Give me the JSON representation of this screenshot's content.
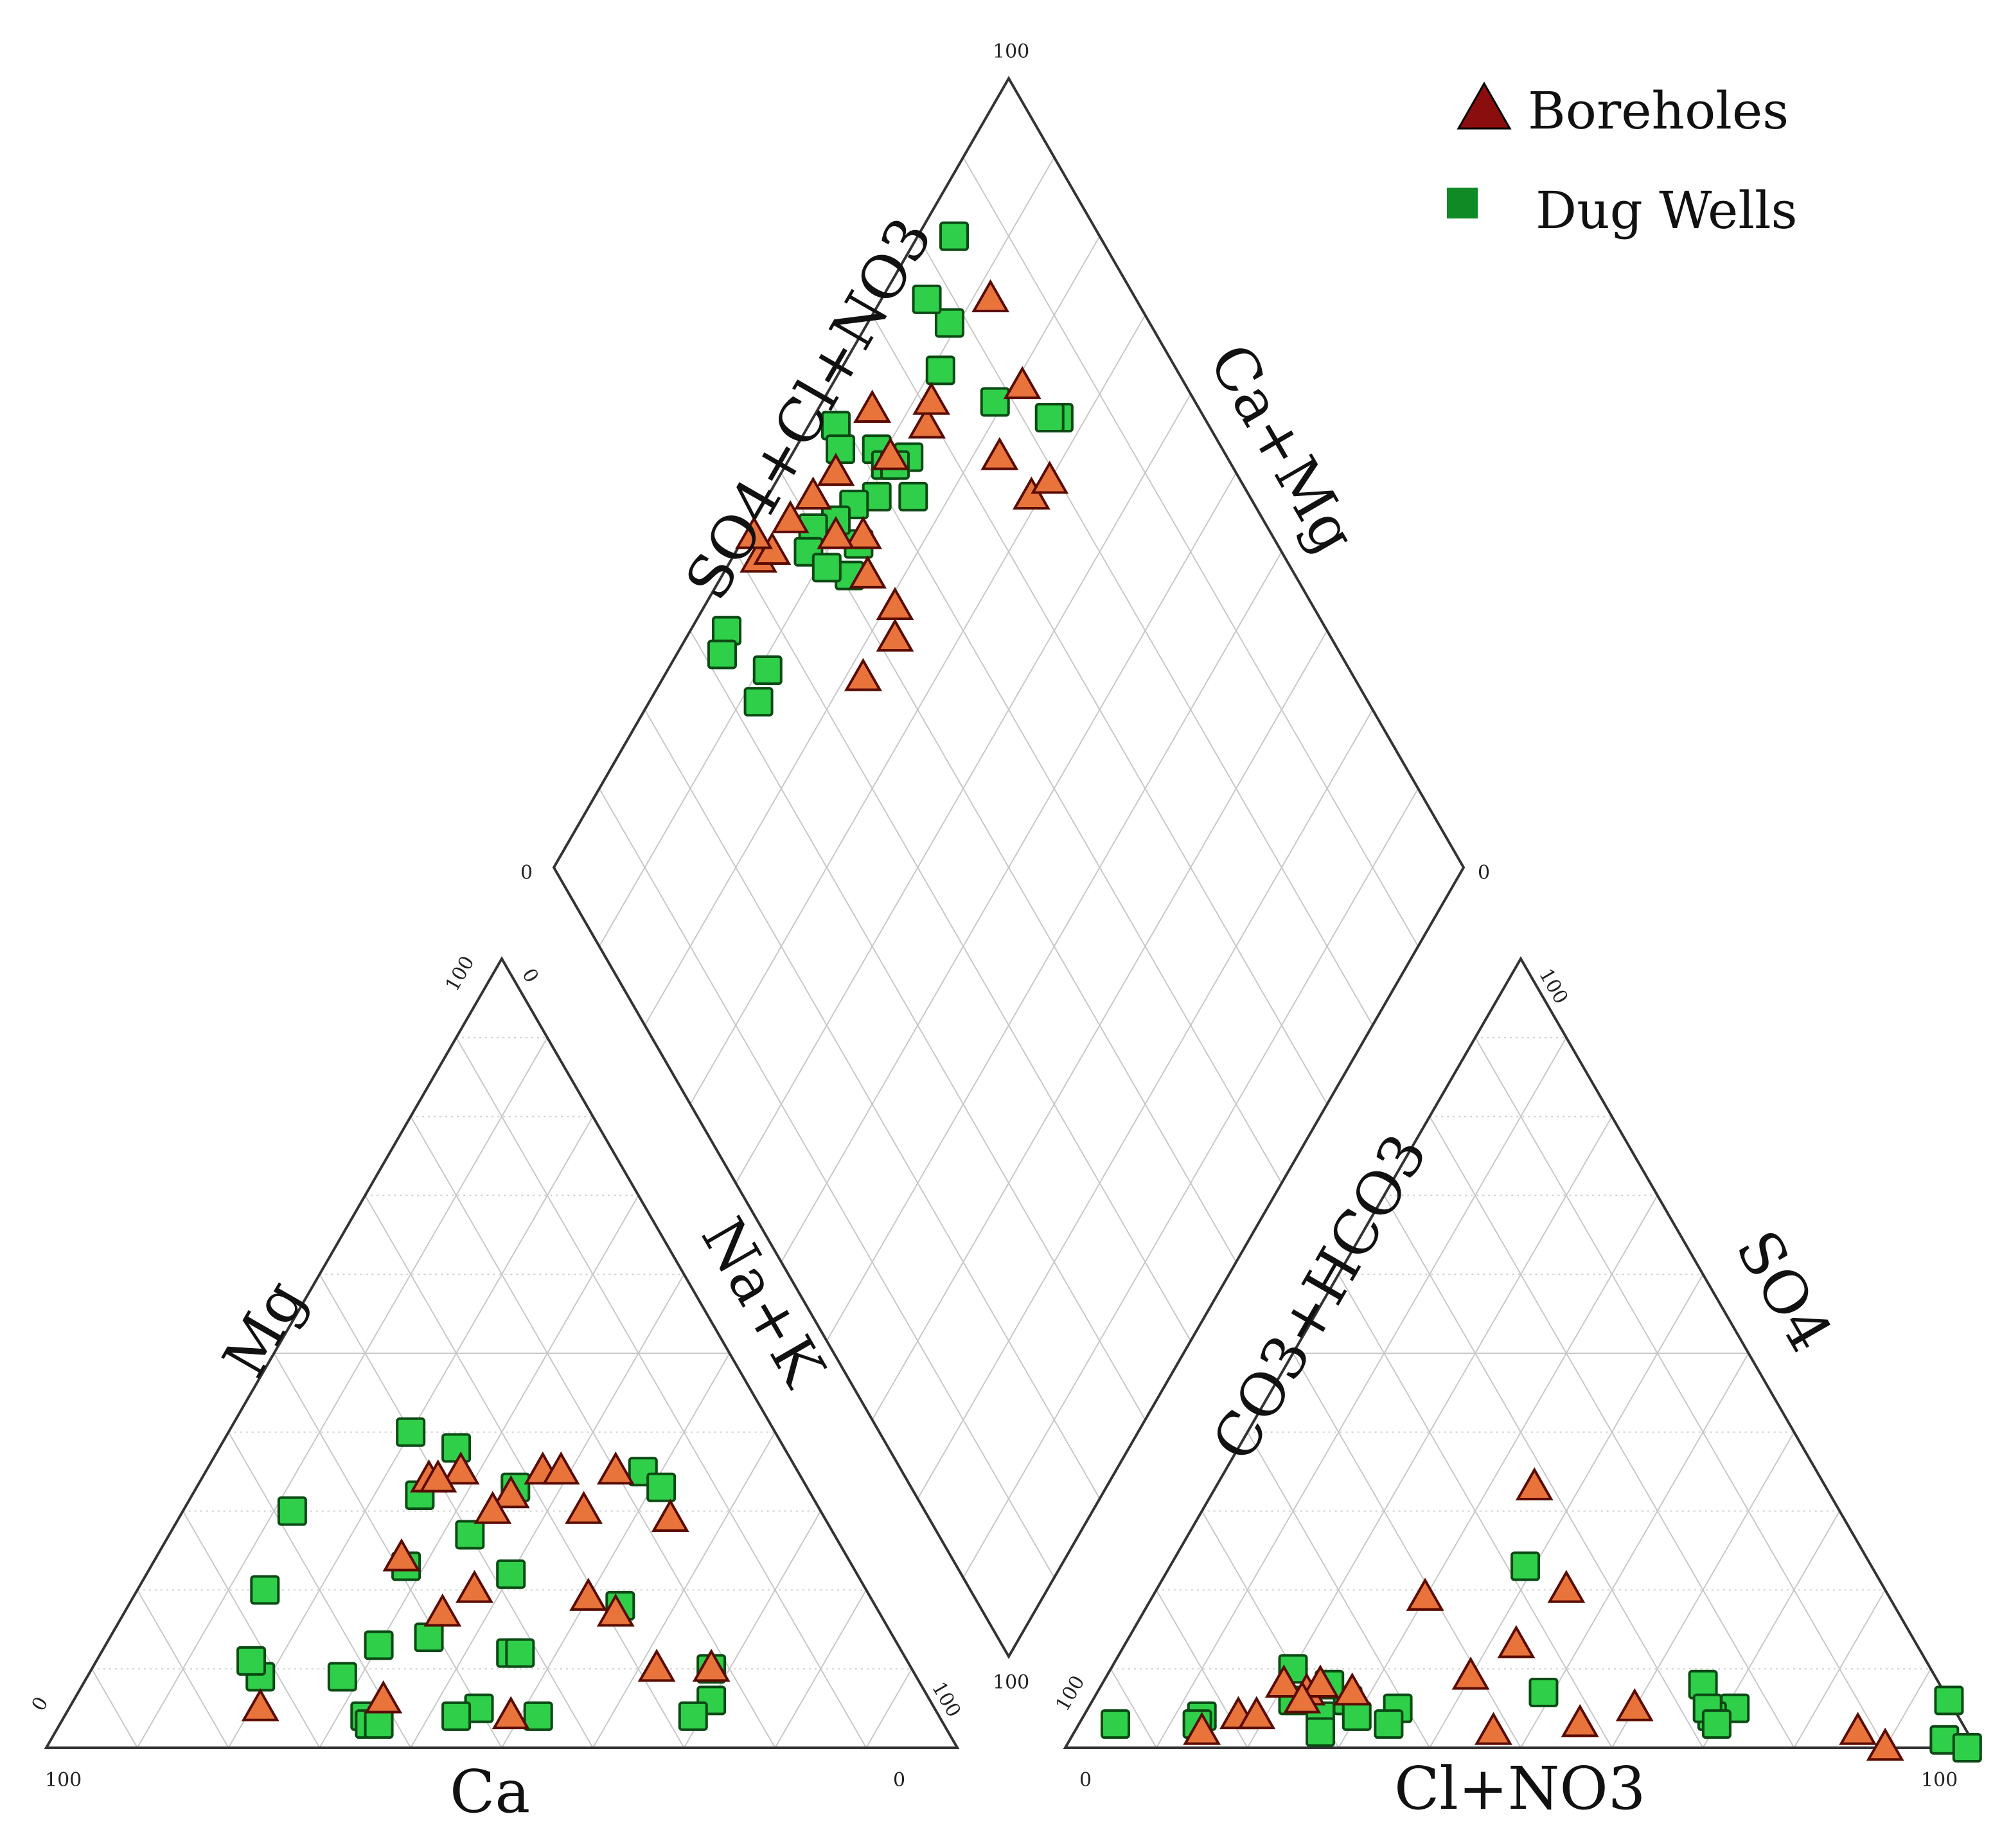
{
  "chart_data": {
    "type": "scatter",
    "subtype": "piper-trilinear",
    "title": "",
    "legend": {
      "placement": "top-right",
      "entries": [
        {
          "name": "Boreholes",
          "marker": "triangle",
          "color": "#e8743b",
          "edge": "#5a0b00",
          "legend_color": "#8b0e0e"
        },
        {
          "name": "Dug Wells",
          "marker": "square",
          "color": "#2fcf4a",
          "edge": "#0b4a14",
          "legend_color": "#0f8a25"
        }
      ]
    },
    "cation_triangle": {
      "axis_labels": {
        "left": "Mg",
        "right": "Na+K",
        "bottom": "Ca"
      },
      "tick_labels": {
        "bottom_left": "100",
        "bottom_right": "0",
        "left_bottom": "0",
        "left_top": "100",
        "right_top": "0",
        "right_bottom": "100"
      },
      "points_units": "% Ca, % Mg",
      "Boreholes": [
        [
          41,
          34
        ],
        [
          37,
          35
        ],
        [
          40,
          34
        ],
        [
          33,
          32
        ],
        [
          28,
          35
        ],
        [
          26,
          35
        ],
        [
          49,
          24
        ],
        [
          36,
          30
        ],
        [
          26,
          30
        ],
        [
          20,
          35
        ],
        [
          17,
          29
        ],
        [
          43,
          20
        ],
        [
          31,
          19
        ],
        [
          29,
          17
        ],
        [
          48,
          17
        ],
        [
          28,
          10
        ],
        [
          22,
          10
        ],
        [
          47,
          4
        ],
        [
          74,
          5
        ],
        [
          60,
          6
        ]
      ],
      "Dug Wells": [
        [
          57,
          13
        ],
        [
          49,
          23
        ],
        [
          40,
          27
        ],
        [
          43,
          32
        ],
        [
          36,
          38
        ],
        [
          32,
          33
        ],
        [
          17,
          35
        ],
        [
          28,
          18
        ],
        [
          38,
          22
        ],
        [
          40,
          40
        ],
        [
          16,
          33
        ],
        [
          58,
          30
        ],
        [
          66,
          20
        ],
        [
          72,
          9
        ],
        [
          63,
          9
        ],
        [
          43,
          12
        ],
        [
          42,
          12
        ],
        [
          44,
          4
        ],
        [
          50,
          5
        ],
        [
          63,
          4
        ],
        [
          53,
          4
        ],
        [
          24,
          6
        ],
        [
          27,
          4
        ],
        [
          22,
          10
        ],
        [
          51,
          14
        ],
        [
          72,
          11
        ],
        [
          63,
          3
        ],
        [
          62,
          3
        ]
      ]
    },
    "anion_triangle": {
      "axis_labels": {
        "left": "CO3+HCO3",
        "right": "SO4",
        "bottom": "Cl+NO3"
      },
      "tick_labels": {
        "bottom_left": "0",
        "bottom_right": "100",
        "left_bottom": "100",
        "right_top": "100"
      },
      "points_units": "% Cl+NO3, % SO4",
      "Boreholes": [
        [
          35,
          33
        ],
        [
          30,
          19
        ],
        [
          45,
          20
        ],
        [
          43,
          13
        ],
        [
          40,
          9
        ],
        [
          28,
          7
        ],
        [
          20,
          8
        ],
        [
          23,
          7
        ],
        [
          17,
          4
        ],
        [
          24,
          8
        ],
        [
          55,
          3
        ],
        [
          60,
          5
        ],
        [
          46,
          2
        ],
        [
          86,
          2
        ],
        [
          90,
          0
        ],
        [
          14,
          2
        ],
        [
          19,
          4
        ],
        [
          23,
          6
        ]
      ],
      "Dug Wells": [
        [
          39,
          23
        ],
        [
          13,
          4
        ],
        [
          22,
          6
        ],
        [
          34,
          5
        ],
        [
          28,
          6
        ],
        [
          20,
          10
        ],
        [
          25,
          8
        ],
        [
          13,
          3
        ],
        [
          34,
          3
        ],
        [
          4,
          3
        ],
        [
          49,
          7
        ],
        [
          66,
          8
        ],
        [
          71,
          5
        ],
        [
          69,
          4
        ],
        [
          68,
          5
        ],
        [
          70,
          3
        ],
        [
          94,
          6
        ],
        [
          96,
          1
        ],
        [
          99,
          0
        ],
        [
          26,
          4
        ],
        [
          30,
          4
        ],
        [
          27,
          2
        ]
      ]
    },
    "diamond": {
      "axis_labels": {
        "upper_left": "SO4+Cl+NO3",
        "upper_right": "Ca+Mg"
      },
      "tick_labels": {
        "top": "100",
        "left": "0",
        "right": "0",
        "bottom": "100"
      },
      "points_units": "% SO4+Cl+NO3, % Na+K",
      "Boreholes": [
        [
          82,
          21
        ],
        [
          75,
          23
        ],
        [
          76,
          29
        ],
        [
          79,
          30
        ],
        [
          84,
          12
        ],
        [
          69,
          13
        ],
        [
          64,
          6
        ],
        [
          63,
          11
        ],
        [
          52,
          23
        ],
        [
          54,
          21
        ],
        [
          56,
          6
        ],
        [
          71,
          12
        ],
        [
          55,
          13
        ],
        [
          52,
          10
        ],
        [
          52,
          5
        ],
        [
          48,
          4
        ],
        [
          42,
          3
        ],
        [
          44,
          4
        ],
        [
          43,
          1
        ],
        [
          53,
          16
        ],
        [
          46,
          22
        ]
      ],
      "Dug Wells": [
        [
          84,
          27
        ],
        [
          83,
          26
        ],
        [
          78,
          19
        ],
        [
          78,
          9
        ],
        [
          77,
          5
        ],
        [
          84,
          4
        ],
        [
          74,
          11
        ],
        [
          59,
          3
        ],
        [
          58,
          5
        ],
        [
          62,
          9
        ],
        [
          62,
          11
        ],
        [
          65,
          13
        ],
        [
          63,
          16
        ],
        [
          59,
          12
        ],
        [
          63,
          12
        ],
        [
          56,
          10
        ],
        [
          54,
          13
        ],
        [
          51,
          14
        ],
        [
          53,
          9
        ],
        [
          50,
          7
        ],
        [
          48,
          8
        ],
        [
          49,
          11
        ],
        [
          36,
          11
        ],
        [
          33,
          12
        ],
        [
          34,
          4
        ],
        [
          32,
          5
        ]
      ]
    }
  }
}
